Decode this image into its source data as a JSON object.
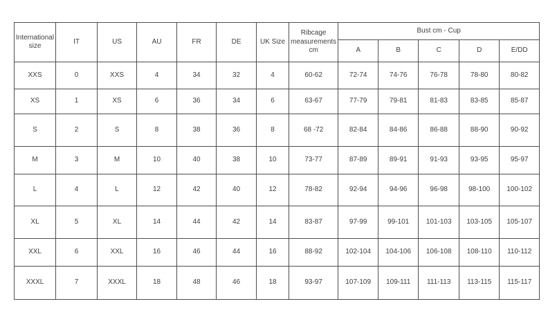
{
  "chart_data": {
    "type": "table",
    "header": {
      "columns": [
        "International size",
        "IT",
        "US",
        "AU",
        "FR",
        "DE",
        "UK Size",
        "Ribcage measurements cm"
      ],
      "group": {
        "label": "Bust cm - Cup",
        "subcolumns": [
          "A",
          "B",
          "C",
          "D",
          "E/DD"
        ]
      }
    },
    "rows": [
      [
        "XXS",
        "0",
        "XXS",
        "4",
        "34",
        "32",
        "4",
        "60-62",
        "72-74",
        "74-76",
        "76-78",
        "78-80",
        "80-82"
      ],
      [
        "XS",
        "1",
        "XS",
        "6",
        "36",
        "34",
        "6",
        "63-67",
        "77-79",
        "79-81",
        "81-83",
        "83-85",
        "85-87"
      ],
      [
        "S",
        "2",
        "S",
        "8",
        "38",
        "36",
        "8",
        "68 -72",
        "82-84",
        "84-86",
        "86-88",
        "88-90",
        "90-92"
      ],
      [
        "M",
        "3",
        "M",
        "10",
        "40",
        "38",
        "10",
        "73-77",
        "87-89",
        "89-91",
        "91-93",
        "93-95",
        "95-97"
      ],
      [
        "L",
        "4",
        "L",
        "12",
        "42",
        "40",
        "12",
        "78-82",
        "92-94",
        "94-96",
        "96-98",
        "98-100",
        "100-102"
      ],
      [
        "XL",
        "5",
        "XL",
        "14",
        "44",
        "42",
        "14",
        "83-87",
        "97-99",
        "99-101",
        "101-103",
        "103-105",
        "105-107"
      ],
      [
        "XXL",
        "6",
        "XXL",
        "16",
        "46",
        "44",
        "16",
        "88-92",
        "102-104",
        "104-106",
        "106-108",
        "108-110",
        "110-112"
      ],
      [
        "XXXL",
        "7",
        "XXXL",
        "18",
        "48",
        "46",
        "18",
        "93-97",
        "107-109",
        "109-111",
        "111-113",
        "113-115",
        "115-117"
      ]
    ],
    "layout": {
      "border_color": "#4d4d4d",
      "text_color": "#3d3d3d",
      "background": "#ffffff"
    }
  }
}
